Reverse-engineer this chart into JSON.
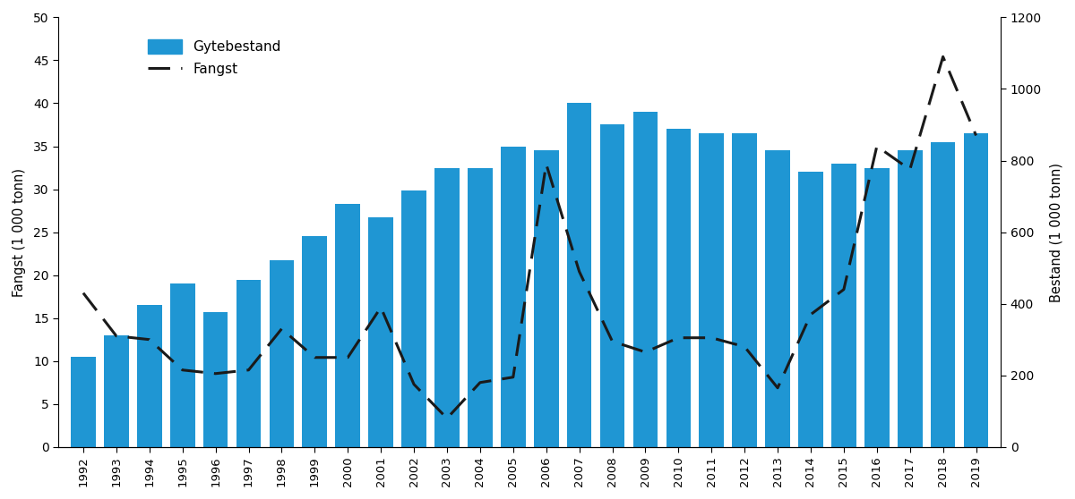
{
  "years": [
    1992,
    1993,
    1994,
    1995,
    1996,
    1997,
    1998,
    1999,
    2000,
    2001,
    2002,
    2003,
    2004,
    2005,
    2006,
    2007,
    2008,
    2009,
    2010,
    2011,
    2012,
    2013,
    2014,
    2015,
    2016,
    2017,
    2018,
    2019
  ],
  "gytebestand": [
    10.5,
    13.0,
    16.5,
    19.0,
    15.7,
    19.4,
    21.7,
    24.5,
    28.3,
    26.7,
    29.9,
    32.5,
    32.5,
    35.0,
    34.5,
    40.0,
    37.5,
    39.0,
    37.0,
    36.5,
    36.5,
    34.5,
    32.0,
    33.0,
    32.5,
    34.5,
    35.5,
    36.5
  ],
  "fangst": [
    430,
    310,
    300,
    215,
    205,
    215,
    330,
    250,
    250,
    390,
    175,
    80,
    180,
    195,
    790,
    490,
    295,
    265,
    305,
    305,
    280,
    165,
    370,
    440,
    840,
    775,
    1090,
    870
  ],
  "bar_color": "#1f96d3",
  "line_color": "#1a1a1a",
  "ylabel_left": "Fangst (1 000 tonn)",
  "ylabel_right": "Bestand (1 000 tonn)",
  "ylim_left": [
    0,
    50
  ],
  "ylim_right": [
    0,
    1200
  ],
  "yticks_left": [
    0,
    5,
    10,
    15,
    20,
    25,
    30,
    35,
    40,
    45,
    50
  ],
  "yticks_right": [
    0,
    200,
    400,
    600,
    800,
    1000,
    1200
  ],
  "legend_gytebestand": "Gytebestand",
  "legend_fangst": "Fangst",
  "background_color": "#ffffff",
  "bar_width": 0.75
}
